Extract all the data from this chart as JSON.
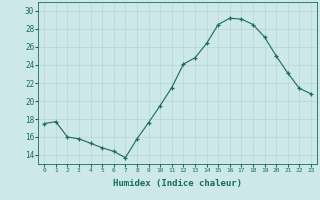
{
  "x": [
    0,
    1,
    2,
    3,
    4,
    5,
    6,
    7,
    8,
    9,
    10,
    11,
    12,
    13,
    14,
    15,
    16,
    17,
    18,
    19,
    20,
    21,
    22,
    23
  ],
  "y": [
    17.5,
    17.7,
    16.0,
    15.8,
    15.3,
    14.8,
    14.4,
    13.7,
    15.8,
    17.6,
    19.5,
    21.5,
    24.1,
    24.8,
    26.4,
    28.5,
    29.2,
    29.1,
    28.5,
    27.1,
    25.0,
    23.1,
    21.4,
    20.8
  ],
  "ylim": [
    13,
    31
  ],
  "yticks": [
    14,
    16,
    18,
    20,
    22,
    24,
    26,
    28,
    30
  ],
  "xlabel": "Humidex (Indice chaleur)",
  "bg_color": "#cce8e8",
  "grid_color": "#b8d4d4",
  "line_color": "#1a6b5a",
  "marker_color": "#1a6b5a",
  "xlabel_color": "#1a6b5a",
  "tick_color": "#1a6b5a"
}
